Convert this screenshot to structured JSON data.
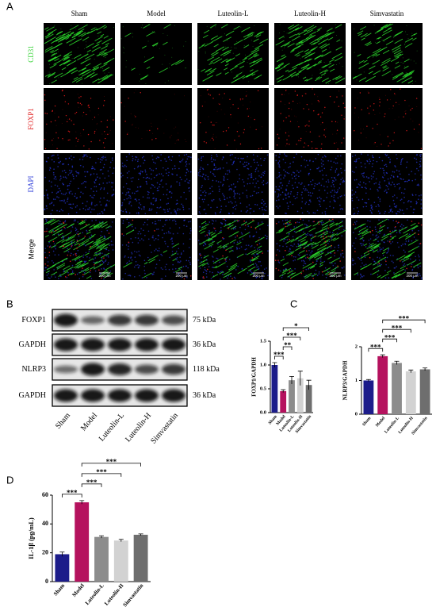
{
  "panel_labels": [
    "A",
    "B",
    "C",
    "D"
  ],
  "microscopy": {
    "columns": [
      "Sham",
      "Model",
      "Luteolin-L",
      "Luteolin-H",
      "Simvastatin"
    ],
    "rows": [
      "CD31",
      "FOXP1",
      "DAPI",
      "Merge"
    ],
    "scale_bar": "200 μm"
  },
  "western_blot": {
    "lanes": [
      "Sham",
      "Model",
      "Luteolin-L",
      "Luteolin-H",
      "Simvastatin"
    ],
    "bands": [
      {
        "name": "FOXP1",
        "size": "75 kDa"
      },
      {
        "name": "GAPDH",
        "size": "36 kDa"
      },
      {
        "name": "NLRP3",
        "size": "118 kDa"
      },
      {
        "name": "GAPDH",
        "size": "36 kDa"
      }
    ]
  },
  "chart_data": [
    {
      "type": "bar",
      "y_label": "FOXP1/GAPDH",
      "categories": [
        "Sham",
        "Model",
        "Luteolin-L",
        "Luteolin-H",
        "Simvastatin"
      ],
      "values": [
        1.0,
        0.45,
        0.68,
        0.72,
        0.58
      ],
      "errors": [
        0.05,
        0.03,
        0.08,
        0.15,
        0.1
      ],
      "colors": [
        "#1c1c8a",
        "#b5125e",
        "#8c8c8c",
        "#d2d2d2",
        "#6e6e6e"
      ],
      "ylim": [
        0,
        1.5
      ],
      "yticks": [
        {
          "value": 0,
          "label": "0.0"
        },
        {
          "value": 0.5,
          "label": "0.5"
        },
        {
          "value": 1,
          "label": "1.0"
        },
        {
          "value": 1.5,
          "label": "1.5"
        }
      ],
      "significance": [
        {
          "pair": [
            "Sham",
            "Model"
          ],
          "label": "***"
        },
        {
          "pair": [
            "Model",
            "Luteolin-L"
          ],
          "label": "**"
        },
        {
          "pair": [
            "Model",
            "Luteolin-H"
          ],
          "label": "***"
        },
        {
          "pair": [
            "Model",
            "Simvastatin"
          ],
          "label": "*"
        }
      ]
    },
    {
      "type": "bar",
      "y_label": "NLRP3/GAPDH",
      "categories": [
        "Sham",
        "Model",
        "Luteolin-L",
        "Luteolin-H",
        "Simvastatin"
      ],
      "values": [
        1.0,
        1.72,
        1.52,
        1.27,
        1.33
      ],
      "errors": [
        0.03,
        0.04,
        0.05,
        0.04,
        0.04
      ],
      "colors": [
        "#1c1c8a",
        "#b5125e",
        "#8c8c8c",
        "#d2d2d2",
        "#6e6e6e"
      ],
      "ylim": [
        0,
        2
      ],
      "yticks": [
        0,
        1,
        2
      ],
      "significance": [
        {
          "pair": [
            "Sham",
            "Model"
          ],
          "label": "***"
        },
        {
          "pair": [
            "Model",
            "Luteolin-L"
          ],
          "label": "***"
        },
        {
          "pair": [
            "Model",
            "Luteolin-H"
          ],
          "label": "***"
        },
        {
          "pair": [
            "Model",
            "Simvastatin"
          ],
          "label": "***"
        }
      ]
    },
    {
      "type": "bar",
      "y_label": "IL-1β (pg/mL)",
      "categories": [
        "Sham",
        "Model",
        "Luteolin-L",
        "Luteolin-H",
        "Simvastatin"
      ],
      "values": [
        19,
        55,
        31,
        28.5,
        32.5
      ],
      "errors": [
        1.5,
        1.2,
        0.8,
        0.8,
        0.6
      ],
      "colors": [
        "#1c1c8a",
        "#b5125e",
        "#8c8c8c",
        "#d2d2d2",
        "#6e6e6e"
      ],
      "ylim": [
        0,
        60
      ],
      "yticks": [
        0,
        20,
        40,
        60
      ],
      "significance": [
        {
          "pair": [
            "Sham",
            "Model"
          ],
          "label": "***"
        },
        {
          "pair": [
            "Model",
            "Luteolin-L"
          ],
          "label": "***"
        },
        {
          "pair": [
            "Model",
            "Luteolin-H"
          ],
          "label": "***"
        },
        {
          "pair": [
            "Model",
            "Simvastatin"
          ],
          "label": "***"
        }
      ]
    }
  ]
}
